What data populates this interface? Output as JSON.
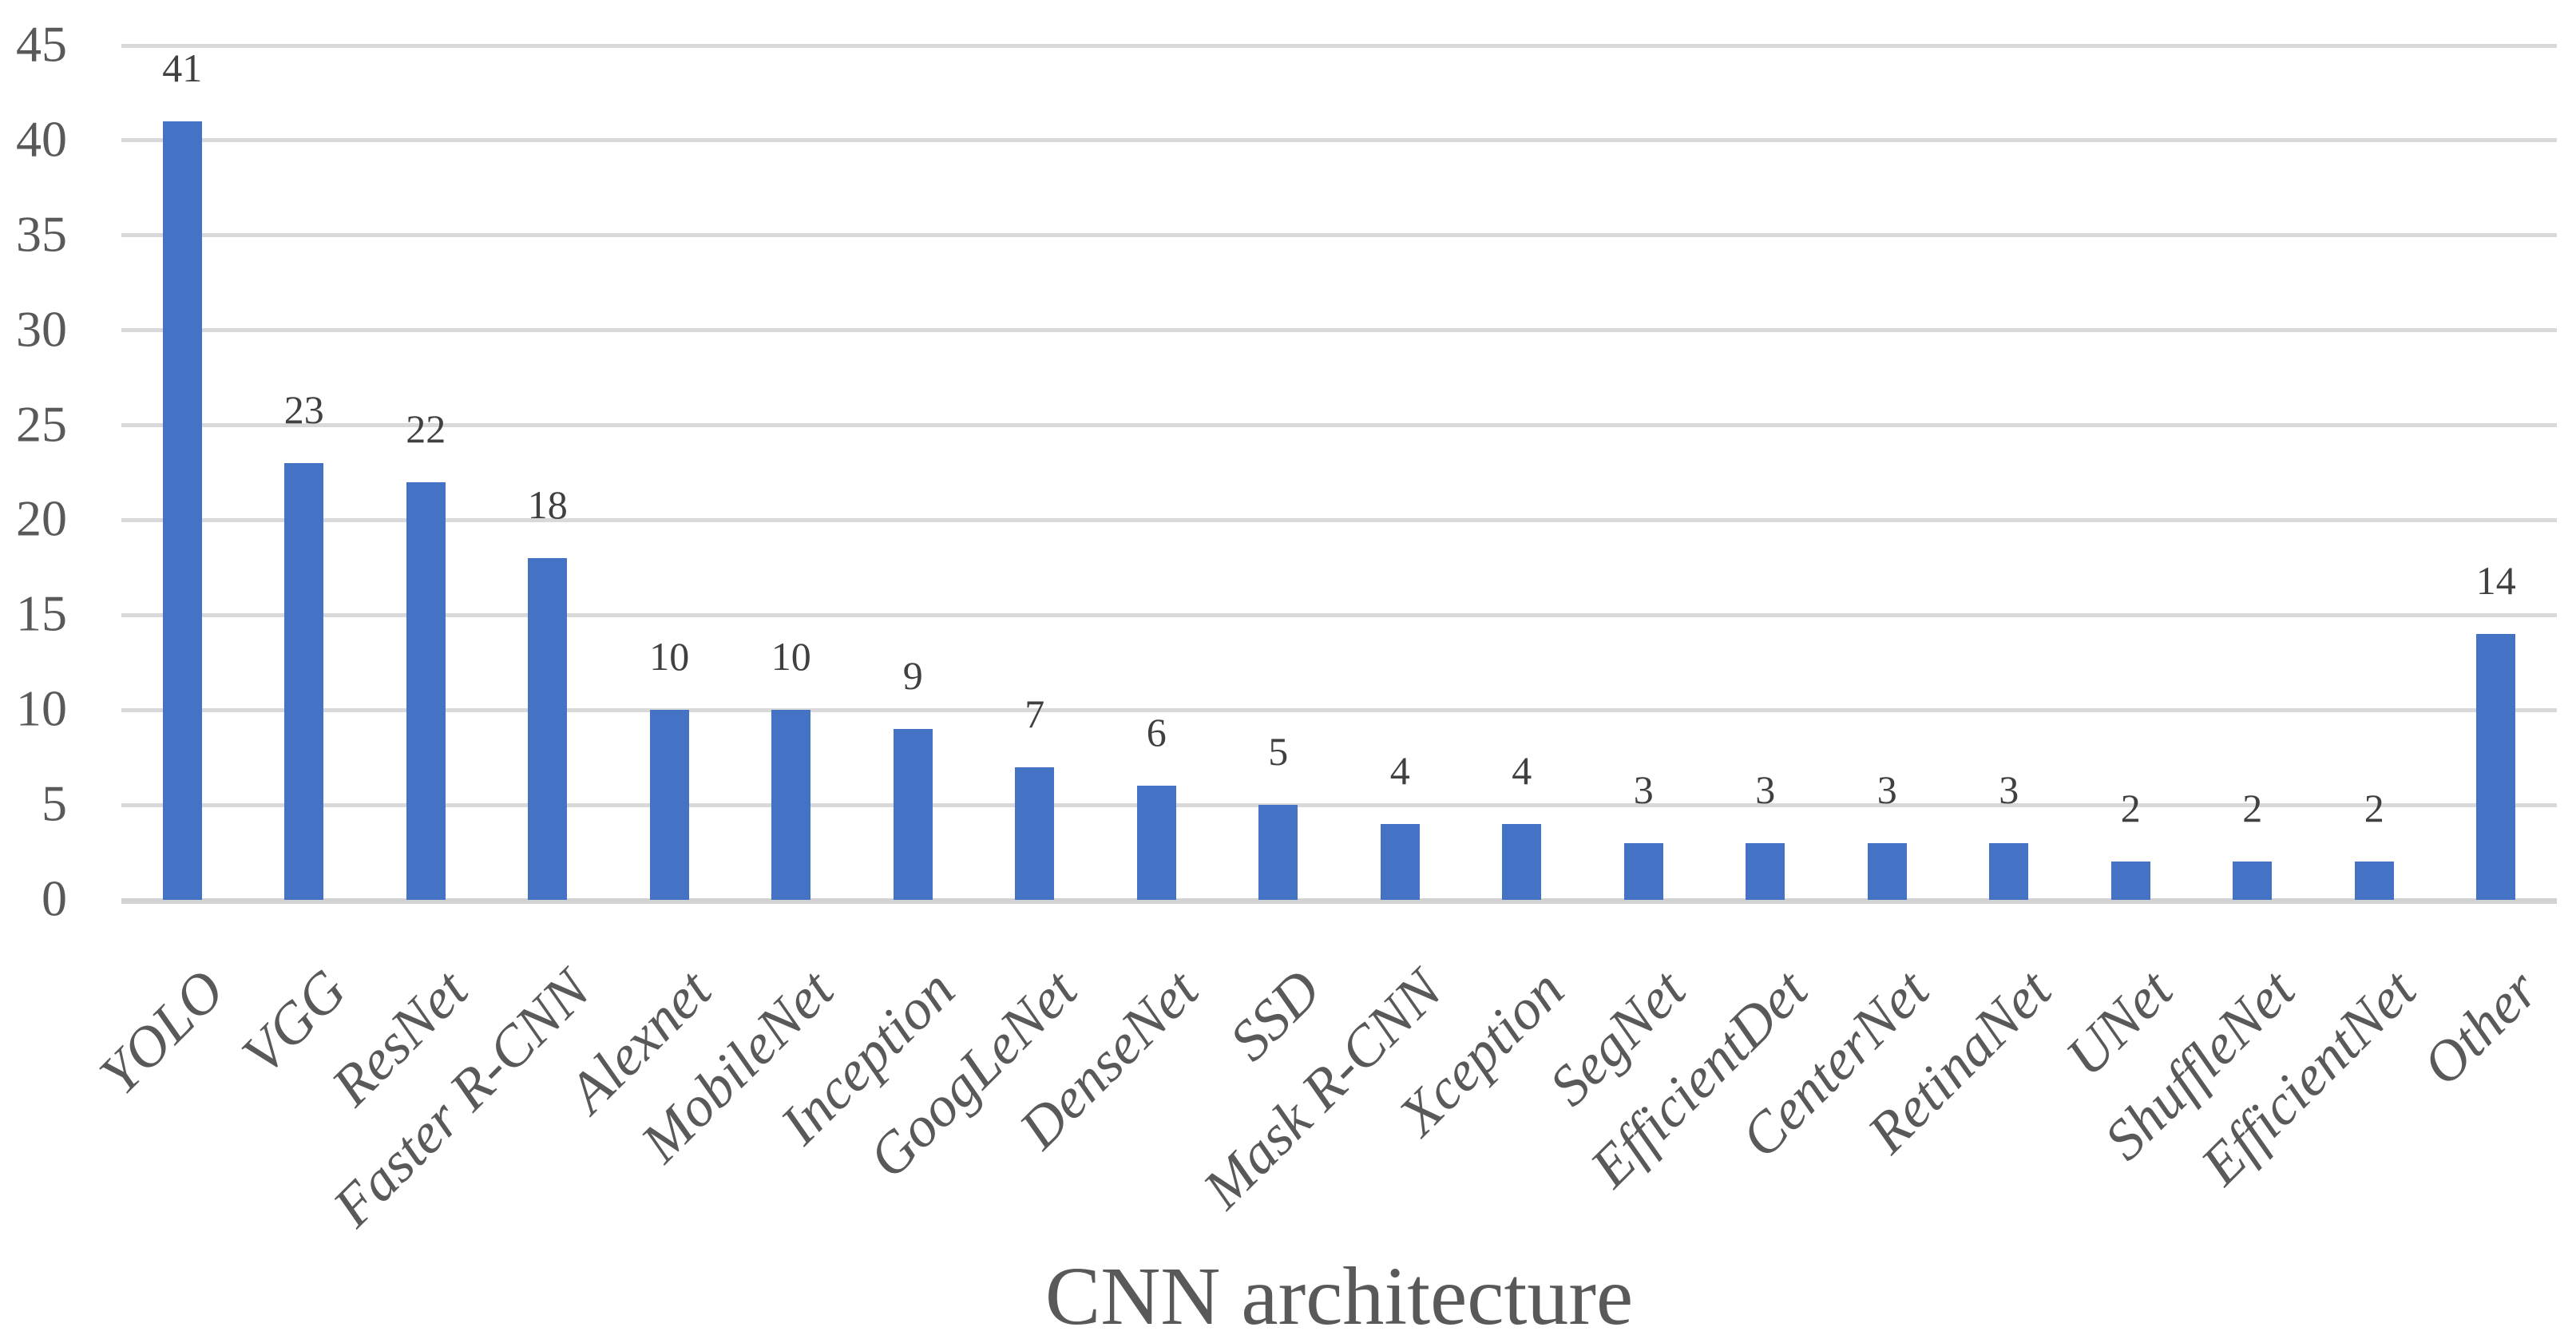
{
  "chart_data": {
    "type": "bar",
    "title": "",
    "xlabel": "CNN architecture",
    "ylabel": "",
    "ylim": [
      0,
      45
    ],
    "yticks": [
      0,
      5,
      10,
      15,
      20,
      25,
      30,
      35,
      40,
      45
    ],
    "grid": "horizontal",
    "legend": "none",
    "data_labels": true,
    "categories": [
      "YOLO",
      "VGG",
      "ResNet",
      "Faster R-CNN",
      "Alexnet",
      "MobileNet",
      "Inception",
      "GoogLeNet",
      "DenseNet",
      "SSD",
      "Mask R-CNN",
      "Xception",
      "SegNet",
      "EfficientDet",
      "CenterNet",
      "RetinaNet",
      "UNet",
      "ShuffleNet",
      "EfficientNet",
      "Other"
    ],
    "values": [
      41,
      23,
      22,
      18,
      10,
      10,
      9,
      7,
      6,
      5,
      4,
      4,
      3,
      3,
      3,
      3,
      2,
      2,
      2,
      14
    ]
  },
  "colors": {
    "bar": "#4472C4",
    "gridline": "#D9D9D9",
    "axis_line": "#D2D2D2",
    "tick_label": "#595959",
    "data_label": "#404040",
    "axis_title": "#595959"
  }
}
